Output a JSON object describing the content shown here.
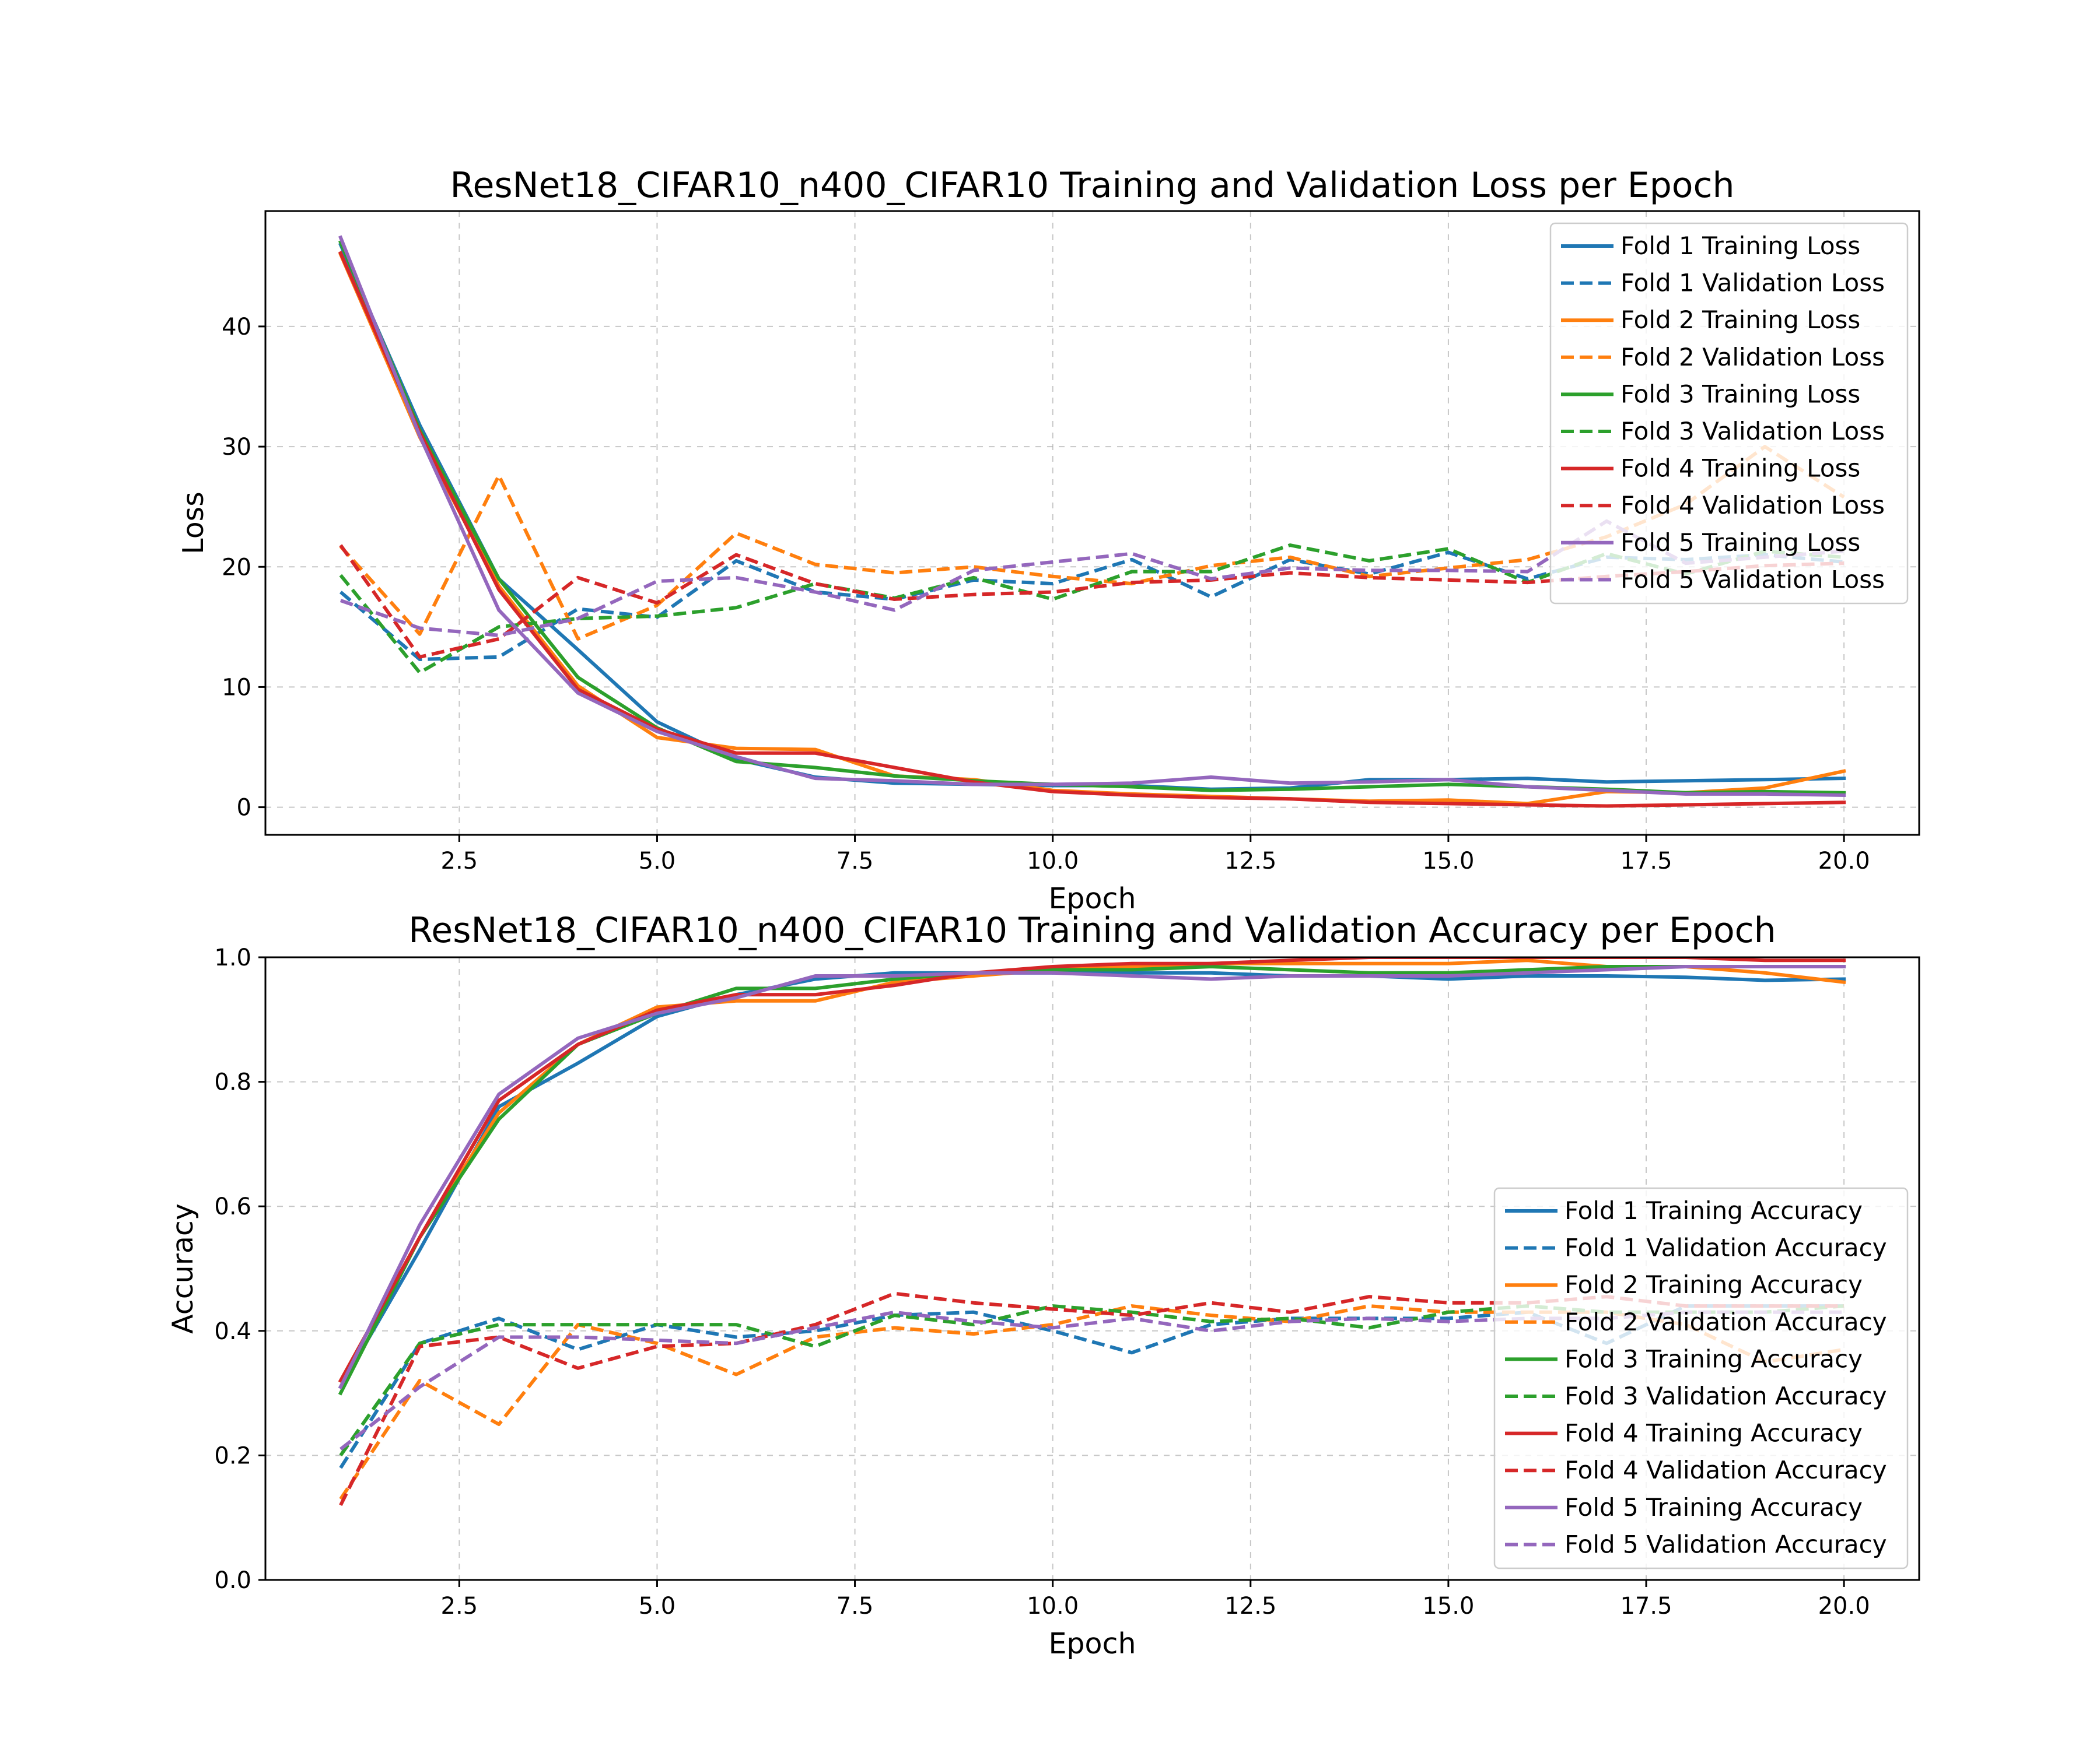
{
  "figure": {
    "charts": [
      "loss",
      "accuracy"
    ]
  },
  "chart_data": [
    {
      "id": "loss",
      "type": "line",
      "title": "ResNet18_CIFAR10_n400_CIFAR10 Training and Validation Loss per Epoch",
      "xlabel": "Epoch",
      "ylabel": "Loss",
      "xlim": [
        0.05,
        20.95
      ],
      "ylim": [
        -2.3,
        49.6
      ],
      "xticks": [
        2.5,
        5.0,
        7.5,
        10.0,
        12.5,
        15.0,
        17.5,
        20.0
      ],
      "xtick_labels": [
        "2.5",
        "5.0",
        "7.5",
        "10.0",
        "12.5",
        "15.0",
        "17.5",
        "20.0"
      ],
      "yticks": [
        0,
        10,
        20,
        30,
        40
      ],
      "ytick_labels": [
        "0",
        "10",
        "20",
        "30",
        "40"
      ],
      "grid": true,
      "legend_position": "upper right",
      "x": [
        1,
        2,
        3,
        4,
        5,
        6,
        7,
        8,
        9,
        10,
        11,
        12,
        13,
        14,
        15,
        16,
        17,
        18,
        19,
        20
      ],
      "series": [
        {
          "name": "Fold 1 Training Loss",
          "color": "#1f77b4",
          "dash": "solid",
          "values": [
            46.8,
            31.8,
            19.0,
            13.1,
            7.1,
            4.0,
            2.5,
            2.0,
            1.9,
            1.8,
            1.8,
            1.5,
            1.6,
            2.3,
            2.3,
            2.4,
            2.1,
            2.2,
            2.3,
            2.4
          ]
        },
        {
          "name": "Fold 1 Validation Loss",
          "color": "#1f77b4",
          "dash": "dashed",
          "values": [
            17.9,
            12.3,
            12.5,
            16.5,
            15.8,
            20.5,
            17.9,
            17.3,
            18.9,
            18.6,
            20.6,
            17.5,
            20.6,
            19.4,
            21.2,
            19.0,
            20.8,
            20.6,
            21.0,
            20.4
          ]
        },
        {
          "name": "Fold 2 Training Loss",
          "color": "#ff7f0e",
          "dash": "solid",
          "values": [
            46.0,
            30.8,
            18.4,
            10.1,
            5.8,
            4.9,
            4.8,
            2.6,
            2.3,
            1.4,
            1.1,
            0.9,
            0.7,
            0.5,
            0.6,
            0.3,
            1.3,
            1.2,
            1.6,
            3.0
          ]
        },
        {
          "name": "Fold 2 Validation Loss",
          "color": "#ff7f0e",
          "dash": "dashed",
          "values": [
            21.7,
            14.4,
            27.6,
            14.0,
            16.8,
            22.8,
            20.2,
            19.5,
            20.0,
            19.2,
            18.6,
            20.1,
            20.8,
            19.2,
            19.9,
            20.6,
            22.5,
            25.2,
            30.0,
            25.8
          ]
        },
        {
          "name": "Fold 3 Training Loss",
          "color": "#2ca02c",
          "dash": "solid",
          "values": [
            47.0,
            31.4,
            19.0,
            10.8,
            6.6,
            3.8,
            3.3,
            2.6,
            2.2,
            1.9,
            1.7,
            1.4,
            1.5,
            1.7,
            1.9,
            1.7,
            1.5,
            1.2,
            1.3,
            1.2
          ]
        },
        {
          "name": "Fold 3 Validation Loss",
          "color": "#2ca02c",
          "dash": "dashed",
          "values": [
            19.3,
            11.2,
            15.0,
            15.7,
            15.9,
            16.6,
            18.6,
            17.4,
            19.1,
            17.3,
            19.6,
            19.6,
            21.8,
            20.5,
            21.5,
            18.7,
            21.1,
            19.4,
            21.3,
            20.8
          ]
        },
        {
          "name": "Fold 4 Training Loss",
          "color": "#d62728",
          "dash": "solid",
          "values": [
            46.1,
            31.2,
            18.1,
            9.8,
            6.5,
            4.5,
            4.5,
            3.3,
            2.1,
            1.3,
            1.0,
            0.8,
            0.7,
            0.4,
            0.3,
            0.2,
            0.1,
            0.2,
            0.3,
            0.4
          ]
        },
        {
          "name": "Fold 4 Validation Loss",
          "color": "#d62728",
          "dash": "dashed",
          "values": [
            21.8,
            12.5,
            14.0,
            19.1,
            17.0,
            21.0,
            18.6,
            17.3,
            17.7,
            17.9,
            18.7,
            18.9,
            19.5,
            19.1,
            18.9,
            18.7,
            19.2,
            19.6,
            20.1,
            20.3
          ]
        },
        {
          "name": "Fold 5 Training Loss",
          "color": "#9467bd",
          "dash": "solid",
          "values": [
            47.4,
            30.9,
            16.4,
            9.5,
            6.3,
            4.2,
            2.4,
            2.2,
            1.9,
            1.9,
            2.0,
            2.5,
            2.0,
            2.1,
            2.3,
            1.7,
            1.4,
            1.1,
            1.1,
            1.0
          ]
        },
        {
          "name": "Fold 5 Validation Loss",
          "color": "#9467bd",
          "dash": "dashed",
          "values": [
            17.2,
            14.9,
            14.3,
            15.7,
            18.8,
            19.1,
            17.9,
            16.4,
            19.7,
            20.4,
            21.1,
            19.0,
            19.9,
            19.7,
            19.7,
            19.6,
            23.8,
            20.3,
            20.8,
            21.3
          ]
        }
      ]
    },
    {
      "id": "accuracy",
      "type": "line",
      "title": "ResNet18_CIFAR10_n400_CIFAR10 Training and Validation Accuracy per Epoch",
      "xlabel": "Epoch",
      "ylabel": "Accuracy",
      "xlim": [
        0.05,
        20.95
      ],
      "ylim": [
        0.0,
        1.0
      ],
      "xticks": [
        2.5,
        5.0,
        7.5,
        10.0,
        12.5,
        15.0,
        17.5,
        20.0
      ],
      "xtick_labels": [
        "2.5",
        "5.0",
        "7.5",
        "10.0",
        "12.5",
        "15.0",
        "17.5",
        "20.0"
      ],
      "yticks": [
        0.0,
        0.2,
        0.4,
        0.6,
        0.8,
        1.0
      ],
      "ytick_labels": [
        "0.0",
        "0.2",
        "0.4",
        "0.6",
        "0.8",
        "1.0"
      ],
      "grid": true,
      "legend_position": "lower right",
      "x": [
        1,
        2,
        3,
        4,
        5,
        6,
        7,
        8,
        9,
        10,
        11,
        12,
        13,
        14,
        15,
        16,
        17,
        18,
        19,
        20
      ],
      "series": [
        {
          "name": "Fold 1 Training Accuracy",
          "color": "#1f77b4",
          "dash": "solid",
          "values": [
            0.31,
            0.53,
            0.76,
            0.83,
            0.905,
            0.94,
            0.965,
            0.975,
            0.975,
            0.975,
            0.975,
            0.975,
            0.97,
            0.97,
            0.965,
            0.97,
            0.97,
            0.968,
            0.963,
            0.965
          ]
        },
        {
          "name": "Fold 1 Validation Accuracy",
          "color": "#1f77b4",
          "dash": "dashed",
          "values": [
            0.18,
            0.38,
            0.42,
            0.37,
            0.41,
            0.39,
            0.4,
            0.425,
            0.43,
            0.4,
            0.365,
            0.41,
            0.42,
            0.42,
            0.42,
            0.43,
            0.38,
            0.44,
            0.44,
            0.44
          ]
        },
        {
          "name": "Fold 2 Training Accuracy",
          "color": "#ff7f0e",
          "dash": "solid",
          "values": [
            0.32,
            0.55,
            0.75,
            0.86,
            0.92,
            0.93,
            0.93,
            0.96,
            0.97,
            0.98,
            0.985,
            0.99,
            0.99,
            0.99,
            0.99,
            0.995,
            0.985,
            0.985,
            0.975,
            0.96
          ]
        },
        {
          "name": "Fold 2 Validation Accuracy",
          "color": "#ff7f0e",
          "dash": "dashed",
          "values": [
            0.13,
            0.32,
            0.25,
            0.41,
            0.38,
            0.33,
            0.39,
            0.405,
            0.395,
            0.41,
            0.44,
            0.425,
            0.415,
            0.44,
            0.43,
            0.43,
            0.43,
            0.41,
            0.35,
            0.37
          ]
        },
        {
          "name": "Fold 3 Training Accuracy",
          "color": "#2ca02c",
          "dash": "solid",
          "values": [
            0.3,
            0.55,
            0.74,
            0.86,
            0.91,
            0.95,
            0.95,
            0.965,
            0.975,
            0.98,
            0.98,
            0.985,
            0.98,
            0.975,
            0.975,
            0.98,
            0.985,
            0.985,
            0.985,
            0.985
          ]
        },
        {
          "name": "Fold 3 Validation Accuracy",
          "color": "#2ca02c",
          "dash": "dashed",
          "values": [
            0.2,
            0.38,
            0.41,
            0.41,
            0.41,
            0.41,
            0.375,
            0.425,
            0.41,
            0.44,
            0.43,
            0.415,
            0.42,
            0.405,
            0.43,
            0.44,
            0.43,
            0.43,
            0.43,
            0.44
          ]
        },
        {
          "name": "Fold 4 Training Accuracy",
          "color": "#d62728",
          "dash": "solid",
          "values": [
            0.32,
            0.55,
            0.77,
            0.86,
            0.915,
            0.94,
            0.94,
            0.955,
            0.975,
            0.985,
            0.99,
            0.99,
            0.995,
            1.0,
            1.0,
            1.0,
            1.0,
            1.0,
            0.995,
            0.995
          ]
        },
        {
          "name": "Fold 4 Validation Accuracy",
          "color": "#d62728",
          "dash": "dashed",
          "values": [
            0.12,
            0.375,
            0.39,
            0.34,
            0.375,
            0.38,
            0.41,
            0.46,
            0.445,
            0.435,
            0.425,
            0.445,
            0.43,
            0.455,
            0.445,
            0.445,
            0.455,
            0.44,
            0.44,
            0.44
          ]
        },
        {
          "name": "Fold 5 Training Accuracy",
          "color": "#9467bd",
          "dash": "solid",
          "values": [
            0.31,
            0.57,
            0.78,
            0.87,
            0.91,
            0.935,
            0.97,
            0.97,
            0.975,
            0.975,
            0.97,
            0.965,
            0.97,
            0.97,
            0.97,
            0.975,
            0.98,
            0.985,
            0.985,
            0.985
          ]
        },
        {
          "name": "Fold 5 Validation Accuracy",
          "color": "#9467bd",
          "dash": "dashed",
          "values": [
            0.21,
            0.31,
            0.39,
            0.39,
            0.385,
            0.38,
            0.405,
            0.43,
            0.415,
            0.405,
            0.42,
            0.4,
            0.415,
            0.42,
            0.415,
            0.42,
            0.42,
            0.43,
            0.43,
            0.43
          ]
        }
      ]
    }
  ]
}
